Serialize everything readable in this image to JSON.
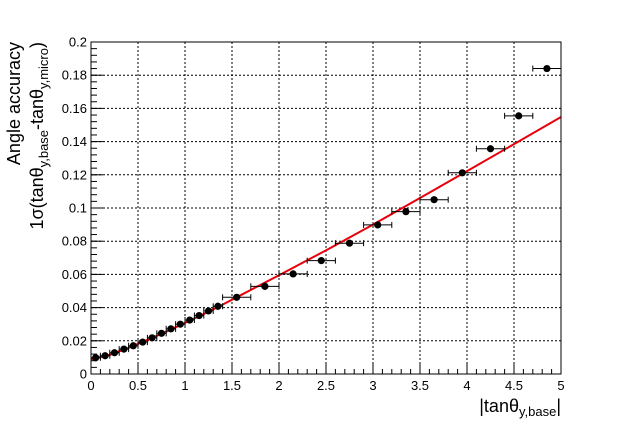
{
  "chart_data": {
    "type": "scatter",
    "title": "",
    "xlabel_main": "|tanθ",
    "xlabel_sub": "y,base",
    "xlabel_end": "|",
    "ylabel_line1": "Angle accuracy",
    "ylabel_line2_a": "1σ(tanθ",
    "ylabel_line2_sub1": "y,base",
    "ylabel_line2_b": "-tanθ",
    "ylabel_line2_sub2": "y,micro",
    "ylabel_line2_c": ")",
    "xlim": [
      0,
      5
    ],
    "ylim": [
      0,
      0.2
    ],
    "xticks": [
      0,
      0.5,
      1,
      1.5,
      2,
      2.5,
      3,
      3.5,
      4,
      4.5,
      5
    ],
    "xtick_labels": [
      "0",
      "0.5",
      "1",
      "1.5",
      "2",
      "2.5",
      "3",
      "3.5",
      "4",
      "4.5",
      "5"
    ],
    "yticks": [
      0,
      0.02,
      0.04,
      0.06,
      0.08,
      0.1,
      0.12,
      0.14,
      0.16,
      0.18,
      0.2
    ],
    "ytick_labels": [
      "0",
      "0.02",
      "0.04",
      "0.06",
      "0.08",
      "0.1",
      "0.12",
      "0.14",
      "0.16",
      "0.18",
      "0.2"
    ],
    "grid": true,
    "series": [
      {
        "points": [
          {
            "x": 0.05,
            "y": 0.0098,
            "xerr": 0.05
          },
          {
            "x": 0.15,
            "y": 0.011,
            "xerr": 0.05
          },
          {
            "x": 0.25,
            "y": 0.0128,
            "xerr": 0.05
          },
          {
            "x": 0.35,
            "y": 0.015,
            "xerr": 0.05
          },
          {
            "x": 0.45,
            "y": 0.017,
            "xerr": 0.05
          },
          {
            "x": 0.55,
            "y": 0.0192,
            "xerr": 0.05
          },
          {
            "x": 0.65,
            "y": 0.0218,
            "xerr": 0.05
          },
          {
            "x": 0.75,
            "y": 0.0245,
            "xerr": 0.05
          },
          {
            "x": 0.85,
            "y": 0.0272,
            "xerr": 0.05
          },
          {
            "x": 0.95,
            "y": 0.03,
            "xerr": 0.05
          },
          {
            "x": 1.05,
            "y": 0.0325,
            "xerr": 0.05
          },
          {
            "x": 1.15,
            "y": 0.0352,
            "xerr": 0.05
          },
          {
            "x": 1.25,
            "y": 0.038,
            "xerr": 0.05
          },
          {
            "x": 1.35,
            "y": 0.0408,
            "xerr": 0.05
          },
          {
            "x": 1.55,
            "y": 0.0462,
            "xerr": 0.15
          },
          {
            "x": 1.85,
            "y": 0.0528,
            "xerr": 0.15
          },
          {
            "x": 2.15,
            "y": 0.0603,
            "xerr": 0.15
          },
          {
            "x": 2.45,
            "y": 0.0683,
            "xerr": 0.15
          },
          {
            "x": 2.75,
            "y": 0.0788,
            "xerr": 0.15
          },
          {
            "x": 3.05,
            "y": 0.0898,
            "xerr": 0.15
          },
          {
            "x": 3.35,
            "y": 0.0978,
            "xerr": 0.15
          },
          {
            "x": 3.65,
            "y": 0.105,
            "xerr": 0.15
          },
          {
            "x": 3.95,
            "y": 0.1212,
            "xerr": 0.15
          },
          {
            "x": 4.25,
            "y": 0.1357,
            "xerr": 0.15
          },
          {
            "x": 4.55,
            "y": 0.1555,
            "xerr": 0.15
          },
          {
            "x": 4.85,
            "y": 0.184,
            "xerr": 0.15
          }
        ],
        "color": "#000000"
      }
    ],
    "fit": {
      "color": "#e8000b",
      "curve": [
        {
          "x": 0.0,
          "y": 0.0088
        },
        {
          "x": 0.2,
          "y": 0.0115
        },
        {
          "x": 0.4,
          "y": 0.0158
        },
        {
          "x": 0.6,
          "y": 0.0205
        },
        {
          "x": 0.8,
          "y": 0.0255
        },
        {
          "x": 1.0,
          "y": 0.0308
        },
        {
          "x": 1.2,
          "y": 0.0362
        },
        {
          "x": 1.4,
          "y": 0.0418
        },
        {
          "x": 1.6,
          "y": 0.0477
        },
        {
          "x": 2.0,
          "y": 0.0595
        },
        {
          "x": 2.5,
          "y": 0.0745
        },
        {
          "x": 3.0,
          "y": 0.09
        },
        {
          "x": 3.5,
          "y": 0.106
        },
        {
          "x": 4.0,
          "y": 0.1222
        },
        {
          "x": 4.5,
          "y": 0.1385
        },
        {
          "x": 5.0,
          "y": 0.1548
        }
      ]
    }
  }
}
